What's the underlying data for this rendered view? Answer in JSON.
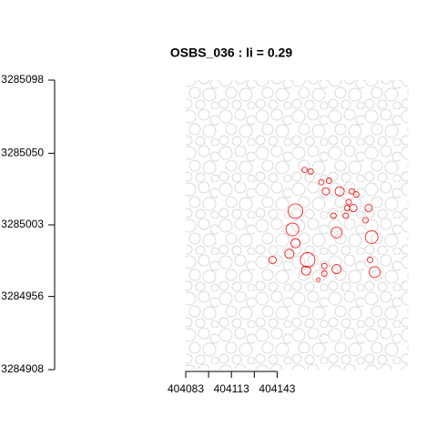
{
  "chart_data": {
    "type": "crowns",
    "title": "OSBS_036 : li = 0.29",
    "xlim": [
      404083,
      404229
    ],
    "ylim": [
      3284908,
      3285098
    ],
    "xticks": [
      404083,
      404113,
      404143
    ],
    "xminorticks": [
      404098,
      404128
    ],
    "yticks": [
      3284908,
      3284956,
      3285003,
      3285050,
      3285098
    ],
    "color": "#ff0000",
    "background_color": "#d9d9d9",
    "x": [
      404161,
      404165,
      404172,
      404177,
      404175,
      404184,
      404192,
      404195,
      404190,
      404189,
      404193,
      404203,
      404155,
      404180,
      404188,
      404201,
      404153,
      404182,
      404205,
      404155,
      404140,
      404151,
      404163,
      404174,
      404204,
      404162,
      404174,
      404182,
      404207,
      404170
    ],
    "y": [
      3285039,
      3285038,
      3285031,
      3285032,
      3285025,
      3285025,
      3285025,
      3285023,
      3285018,
      3285014,
      3285014,
      3285014,
      3285012,
      3285009,
      3285009,
      3285006,
      3285000,
      3284998,
      3284995,
      3284991,
      3284980,
      3284984,
      3284980,
      3284976,
      3284980,
      3284973,
      3284971,
      3284974,
      3284972,
      3284967
    ],
    "r": [
      1.8,
      1.8,
      1.8,
      1.8,
      2.4,
      3,
      1.8,
      1.8,
      1.8,
      1.8,
      2.4,
      2.4,
      4.8,
      1.8,
      1.8,
      1.8,
      4.2,
      3.6,
      4.2,
      3,
      2.4,
      3,
      4.8,
      1.8,
      1.8,
      3,
      1.8,
      3,
      3.6,
      1.2
    ]
  }
}
